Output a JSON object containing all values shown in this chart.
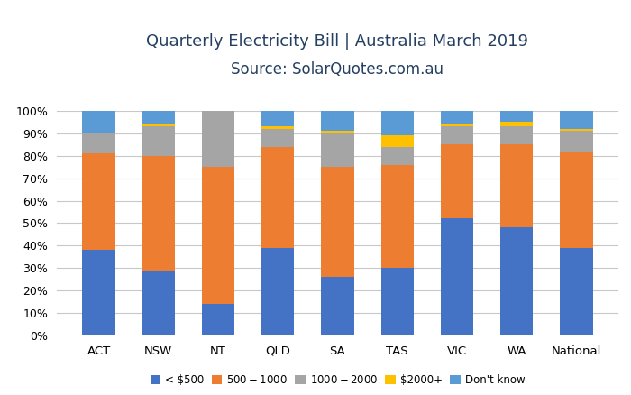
{
  "categories": [
    "ACT",
    "NSW",
    "NT",
    "QLD",
    "SA",
    "TAS",
    "VIC",
    "WA",
    "National"
  ],
  "title_line1": "Quarterly Electricity Bill | Australia March 2019",
  "title_line2": "Source: SolarQuotes.com.au",
  "series": {
    "lt500": [
      38,
      29,
      14,
      39,
      26,
      30,
      52,
      48,
      39
    ],
    "500_1000": [
      43,
      51,
      61,
      45,
      49,
      46,
      33,
      37,
      43
    ],
    "1000_2000": [
      9,
      13,
      25,
      8,
      15,
      8,
      8,
      8,
      9
    ],
    "2000plus": [
      0,
      1,
      0,
      1,
      1,
      5,
      1,
      2,
      1
    ],
    "dont_know": [
      10,
      6,
      0,
      7,
      9,
      11,
      6,
      5,
      8
    ]
  },
  "colors": {
    "lt500": "#4472C4",
    "500_1000": "#ED7D31",
    "1000_2000": "#A5A5A5",
    "2000plus": "#FFC000",
    "dont_know": "#5B9BD5"
  },
  "legend_labels": [
    "< $500",
    "$500 - $1000",
    "$1000- $2000",
    "$2000+",
    "Don't know"
  ],
  "ylim": [
    0,
    100
  ],
  "yticks": [
    0,
    10,
    20,
    30,
    40,
    50,
    60,
    70,
    80,
    90,
    100
  ],
  "ytick_labels": [
    "0%",
    "10%",
    "20%",
    "30%",
    "40%",
    "50%",
    "60%",
    "70%",
    "80%",
    "90%",
    "100%"
  ],
  "background_color": "#FFFFFF",
  "grid_color": "#C8C8C8",
  "title_color": "#243F60",
  "title_fontsize": 13,
  "subtitle_fontsize": 12,
  "bar_width": 0.55
}
